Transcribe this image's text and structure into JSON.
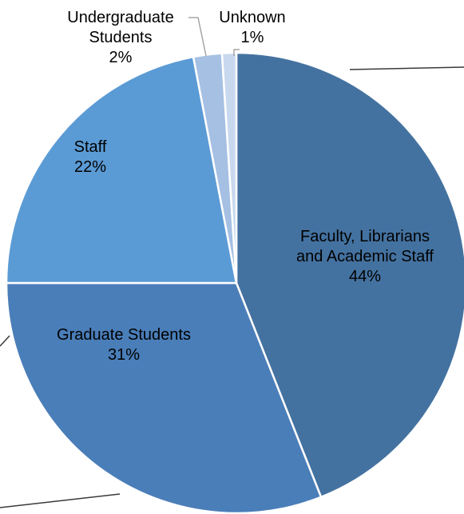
{
  "chart_data": {
    "type": "pie",
    "title": "",
    "slices": [
      {
        "label": "Faculty, Librarians and Academic Staff",
        "label_lines": [
          "Faculty, Librarians",
          "and Academic Staff"
        ],
        "value": 44,
        "value_label": "44%",
        "color": "#4472A0"
      },
      {
        "label": "Graduate Students",
        "label_lines": [
          "Graduate Students"
        ],
        "value": 31,
        "value_label": "31%",
        "color": "#4A7EB9"
      },
      {
        "label": "Staff",
        "label_lines": [
          "Staff"
        ],
        "value": 22,
        "value_label": "22%",
        "color": "#5B9BD5"
      },
      {
        "label": "Undergraduate Students",
        "label_lines": [
          "Undergraduate",
          "Students"
        ],
        "value": 2,
        "value_label": "2%",
        "color": "#A5C0E3"
      },
      {
        "label": "Unknown",
        "label_lines": [
          "Unknown"
        ],
        "value": 1,
        "value_label": "1%",
        "color": "#C8D8EE"
      }
    ],
    "start_angle_deg": 0,
    "direction": "clockwise",
    "legend": "none",
    "grid": false
  },
  "colors": {
    "inner_label_text": "#000000",
    "outer_label_text": "#000000",
    "leader_line": "#A6A6A6",
    "slice_border": "#FFFFFF"
  }
}
